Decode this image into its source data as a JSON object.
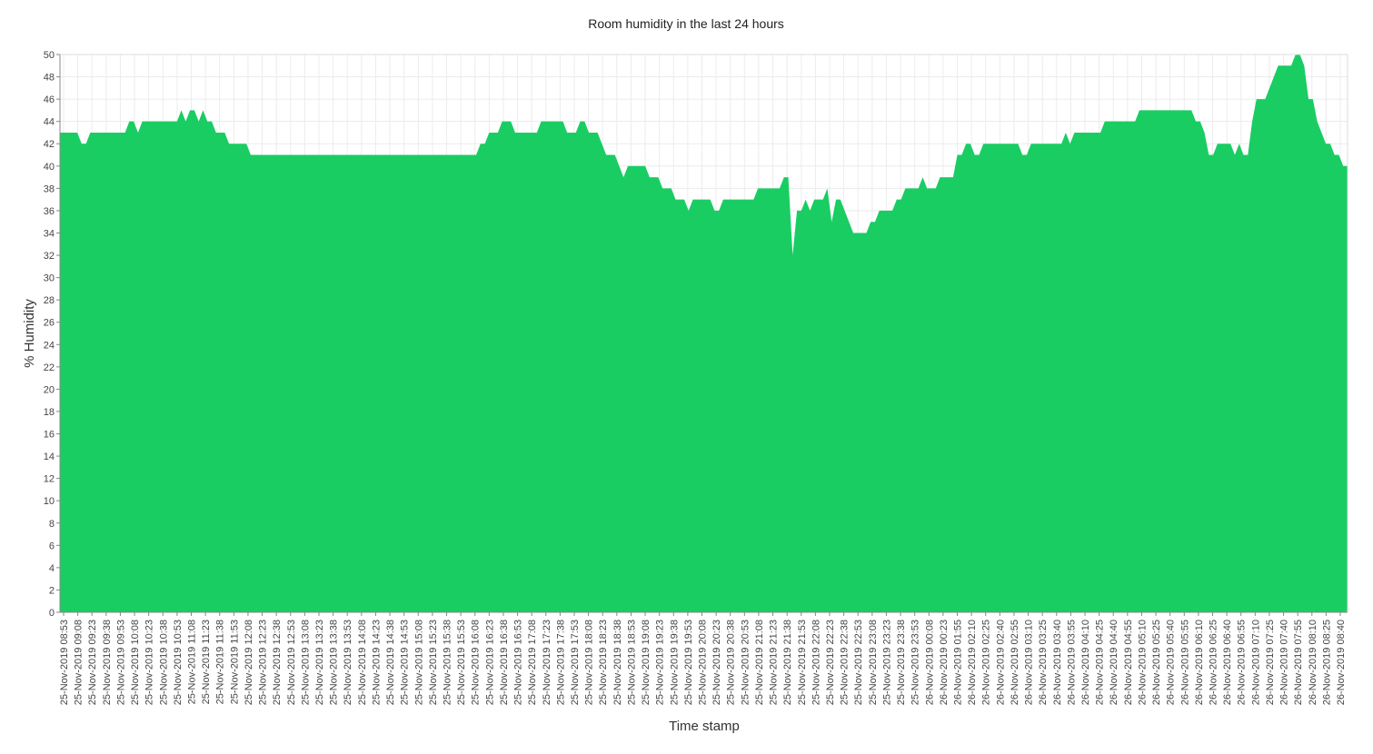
{
  "chart_data": {
    "type": "area",
    "title": "Room humidity in the last 24 hours",
    "xlabel": "Time stamp",
    "ylabel": "% Humidity",
    "ylim": [
      0,
      50
    ],
    "ytick_step": 2,
    "grid": true,
    "color": "#19cd63",
    "x_ticks": [
      "25-Nov-2019 08:53",
      "25-Nov-2019 09:08",
      "25-Nov-2019 09:23",
      "25-Nov-2019 09:38",
      "25-Nov-2019 09:53",
      "25-Nov-2019 10:08",
      "25-Nov-2019 10:23",
      "25-Nov-2019 10:38",
      "25-Nov-2019 10:53",
      "25-Nov-2019 11:08",
      "25-Nov-2019 11:23",
      "25-Nov-2019 11:38",
      "25-Nov-2019 11:53",
      "25-Nov-2019 12:08",
      "25-Nov-2019 12:23",
      "25-Nov-2019 12:38",
      "25-Nov-2019 12:53",
      "25-Nov-2019 13:08",
      "25-Nov-2019 13:23",
      "25-Nov-2019 13:38",
      "25-Nov-2019 13:53",
      "25-Nov-2019 14:08",
      "25-Nov-2019 14:23",
      "25-Nov-2019 14:38",
      "25-Nov-2019 14:53",
      "25-Nov-2019 15:08",
      "25-Nov-2019 15:23",
      "25-Nov-2019 15:38",
      "25-Nov-2019 15:53",
      "25-Nov-2019 16:08",
      "25-Nov-2019 16:23",
      "25-Nov-2019 16:38",
      "25-Nov-2019 16:53",
      "25-Nov-2019 17:08",
      "25-Nov-2019 17:23",
      "25-Nov-2019 17:38",
      "25-Nov-2019 17:53",
      "25-Nov-2019 18:08",
      "25-Nov-2019 18:23",
      "25-Nov-2019 18:38",
      "25-Nov-2019 18:53",
      "25-Nov-2019 19:08",
      "25-Nov-2019 19:23",
      "25-Nov-2019 19:38",
      "25-Nov-2019 19:53",
      "25-Nov-2019 20:08",
      "25-Nov-2019 20:23",
      "25-Nov-2019 20:38",
      "25-Nov-2019 20:53",
      "25-Nov-2019 21:08",
      "25-Nov-2019 21:23",
      "25-Nov-2019 21:38",
      "25-Nov-2019 21:53",
      "25-Nov-2019 22:08",
      "25-Nov-2019 22:23",
      "25-Nov-2019 22:38",
      "25-Nov-2019 22:53",
      "25-Nov-2019 23:08",
      "25-Nov-2019 23:23",
      "25-Nov-2019 23:38",
      "25-Nov-2019 23:53",
      "26-Nov-2019 00:08",
      "26-Nov-2019 00:23",
      "26-Nov-2019 01:55",
      "26-Nov-2019 02:10",
      "26-Nov-2019 02:25",
      "26-Nov-2019 02:40",
      "26-Nov-2019 02:55",
      "26-Nov-2019 03:10",
      "26-Nov-2019 03:25",
      "26-Nov-2019 03:40",
      "26-Nov-2019 03:55",
      "26-Nov-2019 04:10",
      "26-Nov-2019 04:25",
      "26-Nov-2019 04:40",
      "26-Nov-2019 04:55",
      "26-Nov-2019 05:10",
      "26-Nov-2019 05:25",
      "26-Nov-2019 05:40",
      "26-Nov-2019 05:55",
      "26-Nov-2019 06:10",
      "26-Nov-2019 06:25",
      "26-Nov-2019 06:40",
      "26-Nov-2019 06:55",
      "26-Nov-2019 07:10",
      "26-Nov-2019 07:25",
      "26-Nov-2019 07:40",
      "26-Nov-2019 07:55",
      "26-Nov-2019 08:10",
      "26-Nov-2019 08:25",
      "26-Nov-2019 08:40"
    ],
    "series": [
      {
        "values": [
          43,
          43,
          43,
          43,
          43,
          42,
          42,
          43,
          43,
          43,
          43,
          43,
          43,
          43,
          43,
          43,
          44,
          44,
          43,
          44,
          44,
          44,
          44,
          44,
          44,
          44,
          44,
          44,
          45,
          44,
          45,
          45,
          44,
          45,
          44,
          44,
          43,
          43,
          43,
          42,
          42,
          42,
          42,
          42,
          41,
          41,
          41,
          41,
          41,
          41,
          41,
          41,
          41,
          41,
          41,
          41,
          41,
          41,
          41,
          41,
          41,
          41,
          41,
          41,
          41,
          41,
          41,
          41,
          41,
          41,
          41,
          41,
          41,
          41,
          41,
          41,
          41,
          41,
          41,
          41,
          41,
          41,
          41,
          41,
          41,
          41,
          41,
          41,
          41,
          41,
          41,
          41,
          41,
          41,
          41,
          41,
          41,
          42,
          42,
          43,
          43,
          43,
          44,
          44,
          44,
          43,
          43,
          43,
          43,
          43,
          43,
          44,
          44,
          44,
          44,
          44,
          44,
          43,
          43,
          43,
          44,
          44,
          43,
          43,
          43,
          42,
          41,
          41,
          41,
          40,
          39,
          40,
          40,
          40,
          40,
          40,
          39,
          39,
          39,
          38,
          38,
          38,
          37,
          37,
          37,
          36,
          37,
          37,
          37,
          37,
          37,
          36,
          36,
          37,
          37,
          37,
          37,
          37,
          37,
          37,
          37,
          38,
          38,
          38,
          38,
          38,
          38,
          39,
          39,
          32,
          36,
          36,
          37,
          36,
          37,
          37,
          37,
          38,
          35,
          37,
          37,
          36,
          35,
          34,
          34,
          34,
          34,
          35,
          35,
          36,
          36,
          36,
          36,
          37,
          37,
          38,
          38,
          38,
          38,
          39,
          38,
          38,
          38,
          39,
          39,
          39,
          39,
          41,
          41,
          42,
          42,
          41,
          41,
          42,
          42,
          42,
          42,
          42,
          42,
          42,
          42,
          42,
          41,
          41,
          42,
          42,
          42,
          42,
          42,
          42,
          42,
          42,
          43,
          42,
          43,
          43,
          43,
          43,
          43,
          43,
          43,
          44,
          44,
          44,
          44,
          44,
          44,
          44,
          44,
          45,
          45,
          45,
          45,
          45,
          45,
          45,
          45,
          45,
          45,
          45,
          45,
          45,
          44,
          44,
          43,
          41,
          41,
          42,
          42,
          42,
          42,
          41,
          42,
          41,
          41,
          44,
          46,
          46,
          46,
          47,
          48,
          49,
          49,
          49,
          49,
          50,
          50,
          49,
          46,
          46,
          44,
          43,
          42,
          42,
          41,
          41,
          40,
          40
        ]
      }
    ]
  }
}
